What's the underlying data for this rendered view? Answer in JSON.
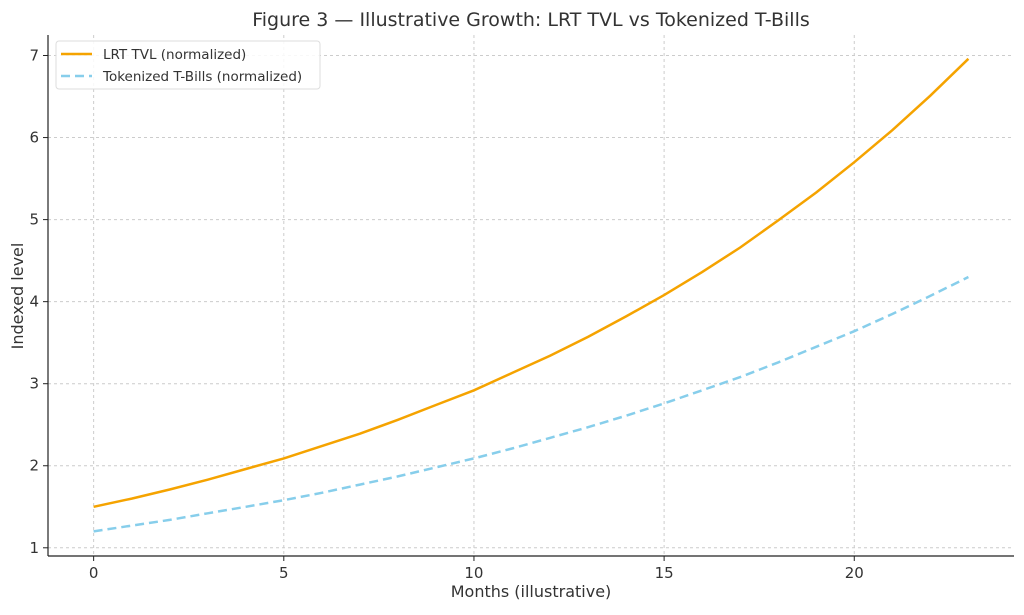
{
  "chart_data": {
    "type": "line",
    "title": "Figure 3 — Illustrative Growth: LRT TVL vs Tokenized T-Bills",
    "xlabel": "Months (illustrative)",
    "ylabel": "Indexed level",
    "xlim": [
      -1.2,
      24.2
    ],
    "ylim": [
      0.9,
      7.25
    ],
    "xticks": [
      0,
      5,
      10,
      15,
      20
    ],
    "yticks": [
      1,
      2,
      3,
      4,
      5,
      6,
      7
    ],
    "grid": true,
    "legend_position": "top-left",
    "x": [
      0,
      1,
      2,
      3,
      4,
      5,
      6,
      7,
      8,
      9,
      10,
      11,
      12,
      13,
      14,
      15,
      16,
      17,
      18,
      19,
      20,
      21,
      22,
      23
    ],
    "series": [
      {
        "name": "LRT TVL (normalized)",
        "color": "#F5A300",
        "style": "solid",
        "values": [
          1.5,
          1.6,
          1.71,
          1.83,
          1.96,
          2.09,
          2.24,
          2.39,
          2.56,
          2.74,
          2.92,
          3.13,
          3.34,
          3.57,
          3.82,
          4.08,
          4.36,
          4.66,
          4.99,
          5.33,
          5.7,
          6.09,
          6.51,
          6.96
        ]
      },
      {
        "name": "Tokenized T-Bills (normalized)",
        "color": "#87CEEB",
        "style": "dashed",
        "values": [
          1.2,
          1.27,
          1.34,
          1.42,
          1.5,
          1.58,
          1.67,
          1.77,
          1.87,
          1.98,
          2.09,
          2.21,
          2.34,
          2.47,
          2.61,
          2.76,
          2.92,
          3.08,
          3.26,
          3.45,
          3.64,
          3.85,
          4.07,
          4.3
        ]
      }
    ]
  }
}
